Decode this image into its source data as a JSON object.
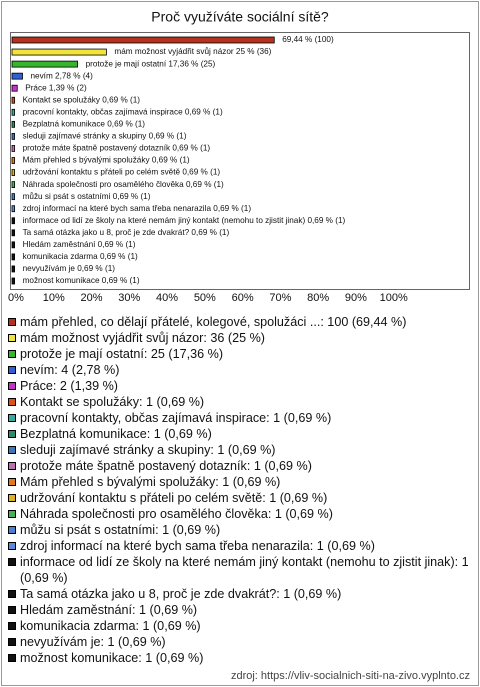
{
  "chart_data": {
    "type": "bar",
    "orientation": "horizontal",
    "title": "Proč využíváte sociální sítě?",
    "values": [
      69.44,
      25,
      17.36,
      2.78,
      1.39,
      0.69,
      0.69,
      0.69,
      0.69,
      0.69,
      0.69,
      0.69,
      0.69,
      0.69,
      0.69,
      0.69,
      0.69,
      0.69,
      0.69,
      0.69,
      0.69
    ],
    "value_labels": [
      "69,44 % (100)",
      "mám možnost vyjádřit svůj názor 25 % (36)",
      "protože je mají ostatní 17,36 % (25)",
      "nevím 2,78 % (4)",
      "Práce 1,39 % (2)",
      "Kontakt se spolužáky 0,69 % (1)",
      "pracovní kontakty, občas zajímavá inspirace 0,69 % (1)",
      "Bezplatná komunikace 0,69 % (1)",
      "sleduji zajímavé stránky a skupiny 0,69 % (1)",
      "protože máte špatně postavený dotazník 0,69 % (1)",
      "Mám přehled s bývalými spolužáky 0,69 % (1)",
      "udržování kontaktu s přáteli po celém světě 0,69 % (1)",
      "Náhrada společnosti pro osamělého člověka 0,69 % (1)",
      "můžu si psát s ostatními 0,69 % (1)",
      "zdroj informací na které bych sama třeba nenarazila 0,69 % (1)",
      "informace od lidí ze školy na které nemám jiný kontakt (nemohu to zjistit jinak) 0,69 % (1)",
      "Ta samá otázka jako u 8, proč je zde dvakrát? 0,69 % (1)",
      "Hledám zaměstnání 0,69 % (1)",
      "komunikacia zdarma 0,69 % (1)",
      "nevyužívám je 0,69 % (1)",
      "možnost komunikace 0,69 % (1)"
    ],
    "legend_labels": [
      "mám přehled, co dělají přátelé, kolegové, spolužáci ...: 100 (69,44 %)",
      "mám možnost vyjádřit svůj názor: 36 (25 %)",
      "protože je mají ostatní: 25 (17,36 %)",
      "nevím: 4 (2,78 %)",
      "Práce: 2 (1,39 %)",
      "Kontakt se spolužáky: 1 (0,69 %)",
      "pracovní kontakty, občas zajímavá inspirace: 1 (0,69 %)",
      "Bezplatná komunikace: 1 (0,69 %)",
      "sleduji zajímavé stránky a skupiny: 1 (0,69 %)",
      "protože máte špatně postavený dotazník: 1 (0,69 %)",
      "Mám přehled s bývalými spolužáky: 1 (0,69 %)",
      "udržování kontaktu s přáteli po celém světě: 1 (0,69 %)",
      "Náhrada společnosti pro osamělého člověka: 1 (0,69 %)",
      "můžu si psát s ostatními: 1 (0,69 %)",
      "zdroj informací na které bych sama třeba nenarazila: 1 (0,69 %)",
      "informace od lidí ze školy na které nemám jiný kontakt (nemohu to zjistit jinak): 1 (0,69 %)",
      "Ta samá otázka jako u 8, proč je zde dvakrát?: 1 (0,69 %)",
      "Hledám zaměstnání: 1 (0,69 %)",
      "komunikacia zdarma: 1 (0,69 %)",
      "nevyužívám je: 1 (0,69 %)",
      "možnost komunikace: 1 (0,69 %)"
    ],
    "colors": [
      "#b5321f",
      "#f2e33a",
      "#38b52e",
      "#2f5fd0",
      "#c034c8",
      "#e0501e",
      "#3aa89a",
      "#2e8a6a",
      "#3a78b8",
      "#c070b0",
      "#e07a20",
      "#e0b020",
      "#48b050",
      "#4a80d0",
      "#5a8ad8",
      "#111111",
      "#111111",
      "#111111",
      "#111111",
      "#111111",
      "#111111"
    ],
    "xlim": [
      0,
      121
    ],
    "xticks": [
      {
        "value": 0,
        "label": "0%"
      },
      {
        "value": 10,
        "label": "10%"
      },
      {
        "value": 20,
        "label": "20%"
      },
      {
        "value": 30,
        "label": "30%"
      },
      {
        "value": 40,
        "label": "40%"
      },
      {
        "value": 50,
        "label": "50%"
      },
      {
        "value": 60,
        "label": "60%"
      },
      {
        "value": 70,
        "label": "70%"
      },
      {
        "value": 80,
        "label": "80%"
      },
      {
        "value": 90,
        "label": "90%"
      },
      {
        "value": 100,
        "label": "100%"
      }
    ],
    "source": "zdroj: https://vliv-socialnich-siti-na-zivo.vyplnto.cz"
  }
}
